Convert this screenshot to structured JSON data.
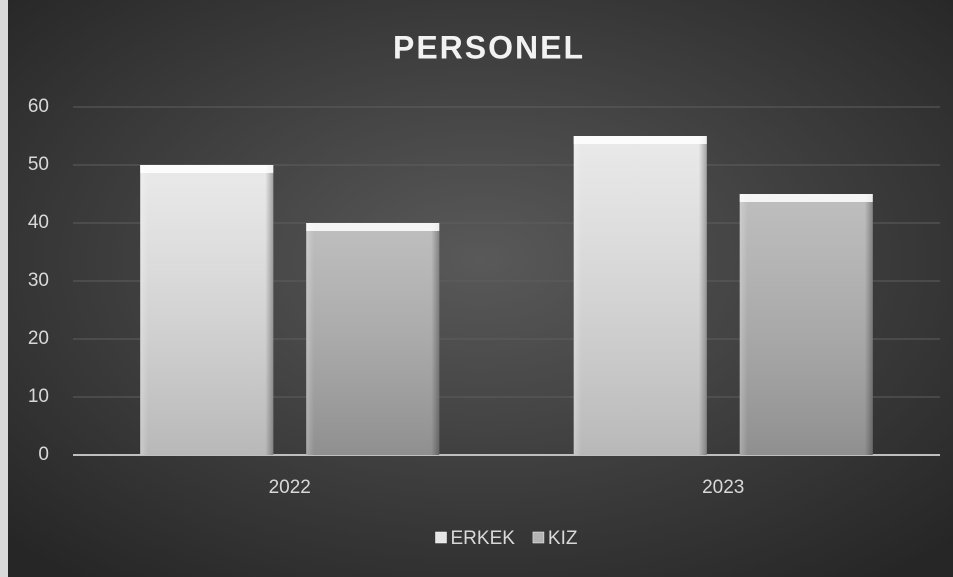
{
  "chart_data": {
    "type": "bar",
    "title": "PERSONEL",
    "categories": [
      "2022",
      "2023"
    ],
    "series": [
      {
        "name": "ERKEK",
        "color": "#e6e6e6",
        "values": [
          50,
          55
        ]
      },
      {
        "name": "KIZ",
        "color": "#b3b3b3",
        "values": [
          40,
          45
        ]
      }
    ],
    "ylim": [
      0,
      60
    ],
    "yticks": [
      0,
      10,
      20,
      30,
      40,
      50,
      60
    ],
    "grid": true,
    "legend": "bottom"
  }
}
